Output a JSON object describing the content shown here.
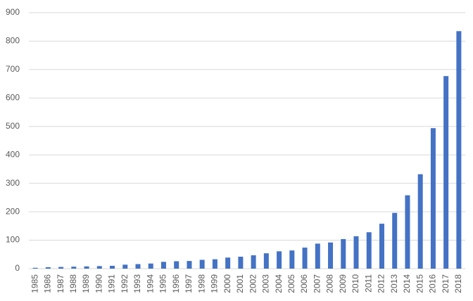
{
  "chart_data": {
    "type": "bar",
    "categories": [
      "1985",
      "1986",
      "1987",
      "1988",
      "1989",
      "1990",
      "1991",
      "1992",
      "1993",
      "1994",
      "1995",
      "1996",
      "1997",
      "1998",
      "1999",
      "2000",
      "2001",
      "2002",
      "2003",
      "2004",
      "2005",
      "2006",
      "2007",
      "2008",
      "2009",
      "2010",
      "2011",
      "2012",
      "2013",
      "2014",
      "2015",
      "2016",
      "2017",
      "2018"
    ],
    "values": [
      3,
      5,
      6,
      7,
      8,
      9,
      10,
      14,
      16,
      18,
      24,
      26,
      27,
      31,
      33,
      39,
      42,
      47,
      54,
      61,
      64,
      74,
      88,
      92,
      104,
      114,
      128,
      158,
      196,
      258,
      332,
      494,
      677,
      835
    ],
    "color": "#4472c4",
    "ylim": [
      0,
      900
    ],
    "yticks": [
      0,
      100,
      200,
      300,
      400,
      500,
      600,
      700,
      800,
      900
    ],
    "grid": true
  }
}
